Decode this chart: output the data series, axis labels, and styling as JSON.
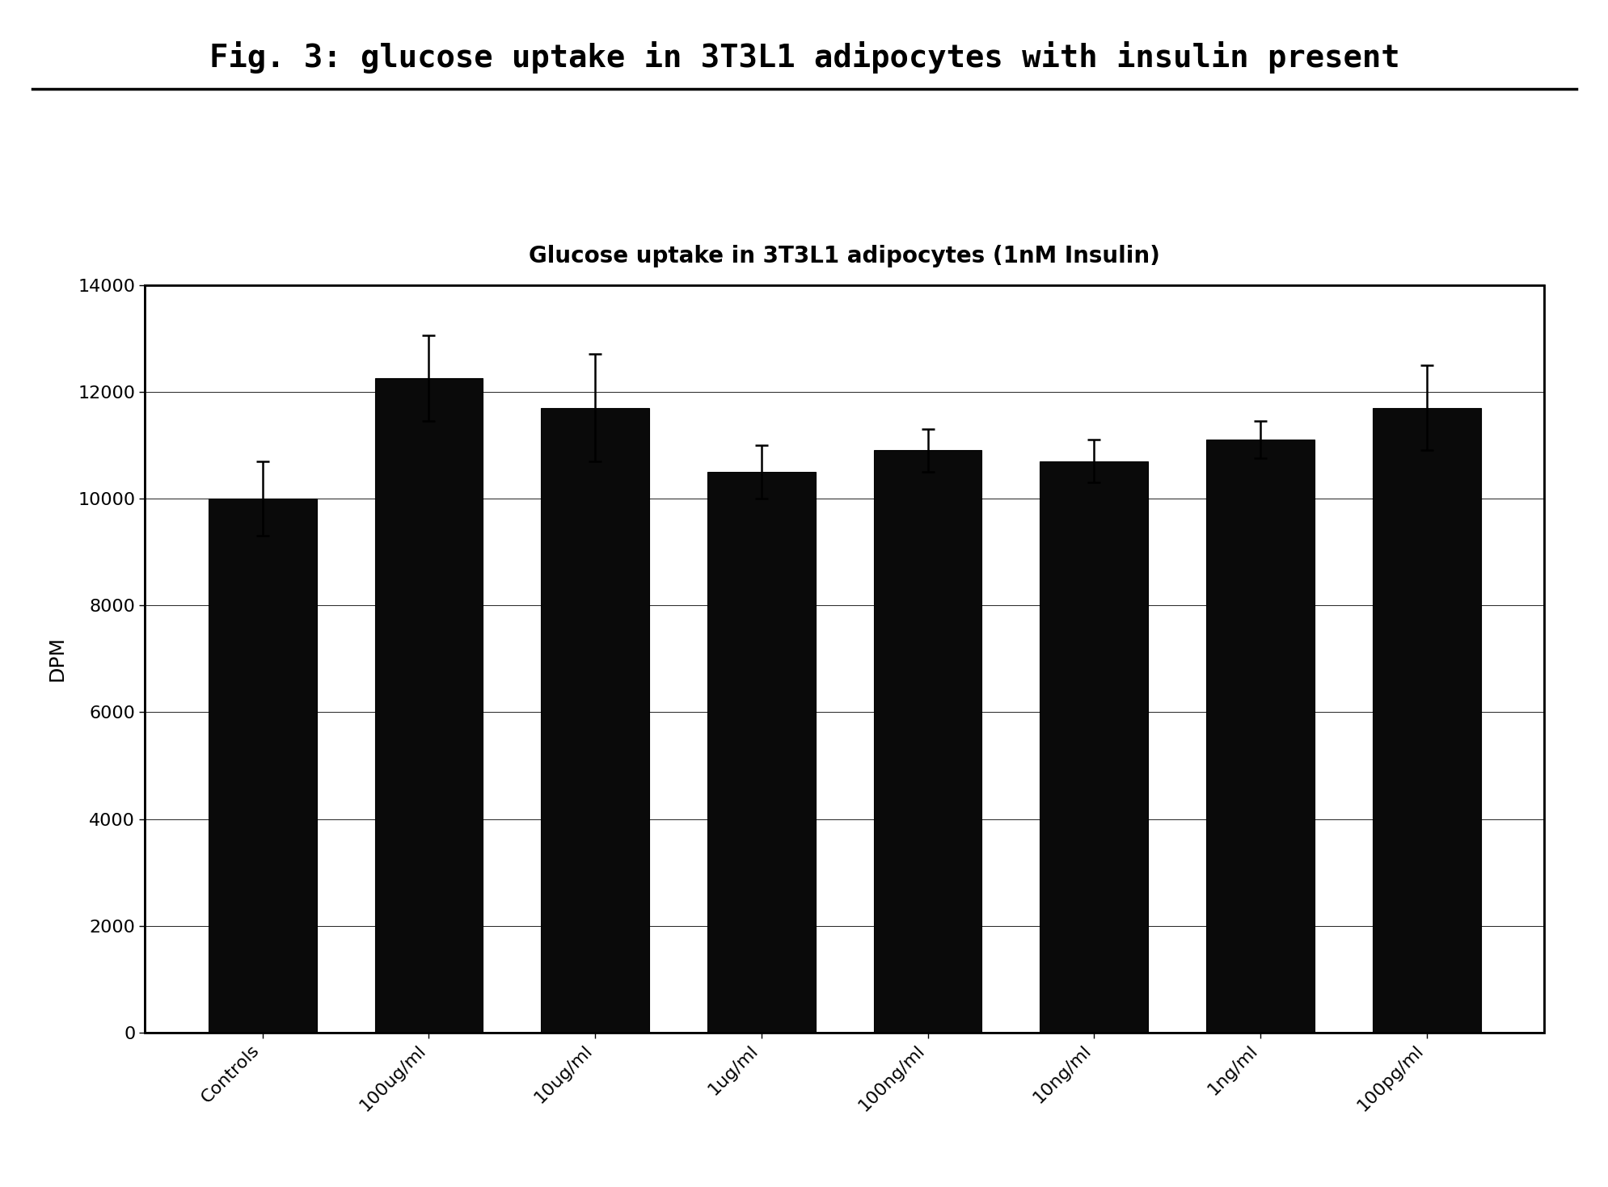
{
  "title_fig": "Fig. 3: glucose uptake in 3T3L1 adipocytes with insulin present",
  "chart_title": "Glucose uptake in 3T3L1 adipocytes (1nM Insulin)",
  "ylabel": "DPM",
  "categories": [
    "Controls",
    "100ug/ml",
    "10ug/ml",
    "1ug/ml",
    "100ng/ml",
    "10ng/ml",
    "1ng/ml",
    "100pg/ml"
  ],
  "values": [
    10000,
    12250,
    11700,
    10500,
    10900,
    10700,
    11100,
    11700
  ],
  "errors": [
    700,
    800,
    1000,
    500,
    400,
    400,
    350,
    800
  ],
  "bar_color": "#0a0a0a",
  "ylim": [
    0,
    14000
  ],
  "yticks": [
    0,
    2000,
    4000,
    6000,
    8000,
    10000,
    12000,
    14000
  ],
  "background_color": "#ffffff",
  "chart_bg_color": "#ffffff",
  "fig_title_fontsize": 28,
  "chart_title_fontsize": 20,
  "ylabel_fontsize": 18,
  "tick_fontsize": 16,
  "xtick_fontsize": 16
}
